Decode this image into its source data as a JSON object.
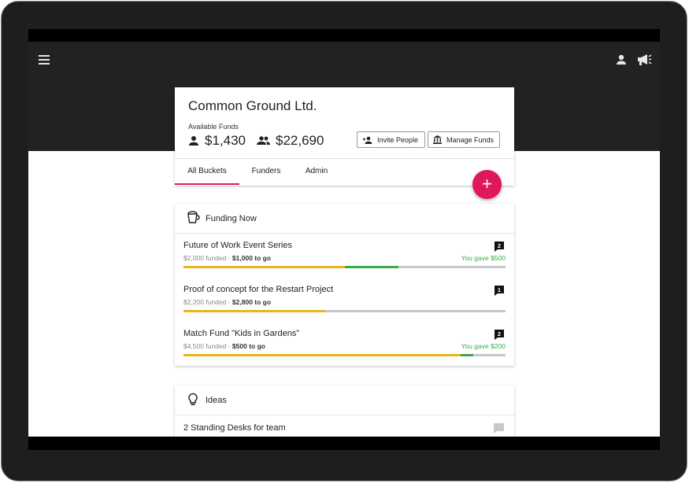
{
  "org": {
    "name": "Common Ground Ltd.",
    "funds_label": "Available Funds",
    "personal_funds": "$1,430",
    "group_funds": "$22,690",
    "invite_label": "Invite People",
    "manage_label": "Manage Funds"
  },
  "tabs": [
    {
      "label": "All Buckets",
      "active": true
    },
    {
      "label": "Funders",
      "active": false
    },
    {
      "label": "Admin",
      "active": false
    }
  ],
  "fab": {
    "label": "+"
  },
  "funding": {
    "title": "Funding Now",
    "buckets": [
      {
        "title": "Future of Work Event Series",
        "funded": "$2,000 funded - ",
        "to_go": "$1,000 to go",
        "gave": "You gave $500",
        "comments": "2",
        "progress_funded": 0.5,
        "progress_gave": 0.167
      },
      {
        "title": "Proof of concept for the Restart Project",
        "funded": "$2,200 funded - ",
        "to_go": "$2,800 to go",
        "gave": "",
        "comments": "1",
        "progress_funded": 0.44,
        "progress_gave": 0
      },
      {
        "title": "Match Fund \"Kids in Gardens\"",
        "funded": "$4,500 funded - ",
        "to_go": "$500 to go",
        "gave": "You gave $200",
        "comments": "2",
        "progress_funded": 0.86,
        "progress_gave": 0.04
      }
    ]
  },
  "ideas": {
    "title": "Ideas",
    "items": [
      {
        "title": "2 Standing Desks for team"
      }
    ]
  },
  "colors": {
    "accent": "#e0185a",
    "funded": "#f2b21b",
    "gave": "#3aab4a",
    "appbar": "#222222"
  },
  "icons": [
    "menu-icon",
    "user-icon",
    "megaphone-icon",
    "person-icon",
    "group-icon",
    "person-add-icon",
    "bank-icon",
    "bucket-icon",
    "lightbulb-icon",
    "comment-icon"
  ]
}
